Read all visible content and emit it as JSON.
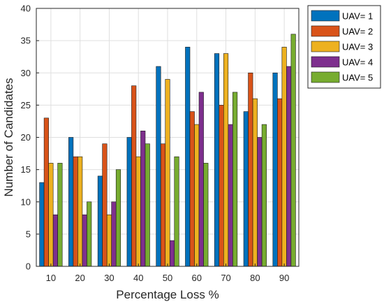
{
  "chart_data": {
    "type": "bar",
    "xlabel": "Percentage Loss %",
    "ylabel": "Number of Candidates",
    "categories": [
      "10",
      "20",
      "30",
      "40",
      "50",
      "60",
      "70",
      "80",
      "90"
    ],
    "ylim": [
      0,
      40
    ],
    "yticks": [
      0,
      5,
      10,
      15,
      20,
      25,
      30,
      35,
      40
    ],
    "grid": true,
    "legend_position": "outside-top-right",
    "series": [
      {
        "name": "UAV= 1",
        "color": "#0072BD",
        "values": [
          13,
          20,
          14,
          20,
          31,
          34,
          33,
          24,
          30
        ]
      },
      {
        "name": "UAV= 2",
        "color": "#D95319",
        "values": [
          23,
          17,
          19,
          28,
          19,
          24,
          25,
          30,
          26
        ]
      },
      {
        "name": "UAV= 3",
        "color": "#EDB120",
        "values": [
          16,
          17,
          8,
          17,
          29,
          22,
          33,
          26,
          34
        ]
      },
      {
        "name": "UAV= 4",
        "color": "#7E2F8E",
        "values": [
          8,
          8,
          10,
          21,
          4,
          27,
          22,
          20,
          31
        ]
      },
      {
        "name": "UAV= 5",
        "color": "#77AC30",
        "values": [
          16,
          10,
          15,
          19,
          17,
          16,
          27,
          22,
          36
        ]
      }
    ]
  }
}
